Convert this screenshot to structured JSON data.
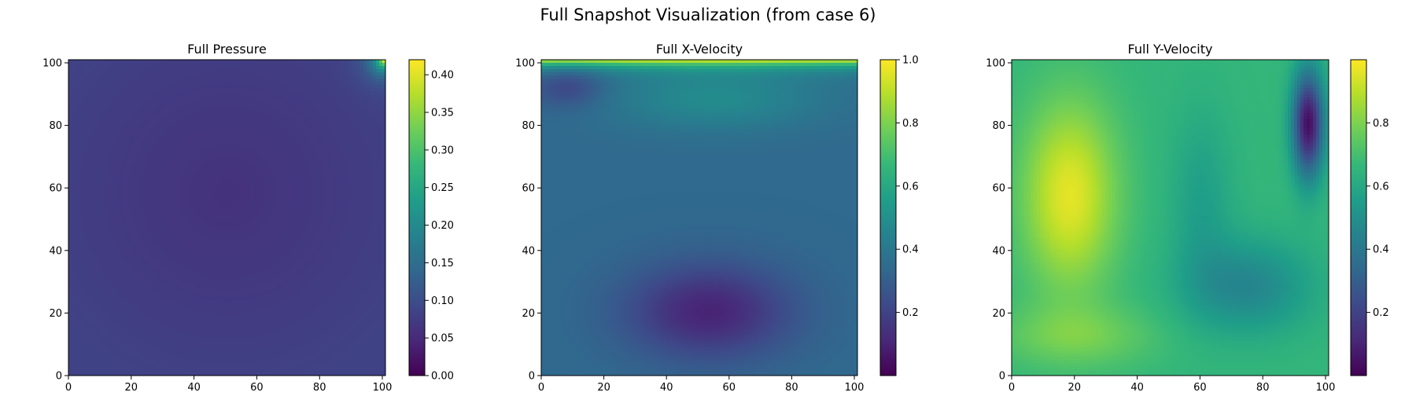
{
  "figure": {
    "title": "Full Snapshot Visualization (from case 6)"
  },
  "colors": {
    "viridis": [
      "#440154",
      "#482878",
      "#3e4989",
      "#31688e",
      "#26828e",
      "#1f9e89",
      "#35b779",
      "#6ece58",
      "#b5de2b",
      "#fde725"
    ]
  },
  "chart_data": [
    {
      "type": "heatmap",
      "title": "Full Pressure",
      "field": "pressure",
      "xlim": [
        0,
        101
      ],
      "ylim": [
        0,
        101
      ],
      "xticks": [
        0,
        20,
        40,
        60,
        80,
        100
      ],
      "yticks": [
        0,
        20,
        40,
        60,
        80,
        100
      ],
      "colorbar": {
        "vmin": 0.0,
        "vmax": 0.42,
        "ticks": [
          "0.00",
          "0.05",
          "0.10",
          "0.15",
          "0.20",
          "0.25",
          "0.30",
          "0.35",
          "0.40"
        ]
      }
    },
    {
      "type": "heatmap",
      "title": "Full X-Velocity",
      "field": "xvel",
      "xlim": [
        0,
        101
      ],
      "ylim": [
        0,
        101
      ],
      "xticks": [
        0,
        20,
        40,
        60,
        80,
        100
      ],
      "yticks": [
        0,
        20,
        40,
        60,
        80,
        100
      ],
      "colorbar": {
        "vmin": 0.0,
        "vmax": 1.0,
        "ticks": [
          "0.2",
          "0.4",
          "0.6",
          "0.8",
          "1.0"
        ]
      }
    },
    {
      "type": "heatmap",
      "title": "Full Y-Velocity",
      "field": "yvel",
      "xlim": [
        0,
        101
      ],
      "ylim": [
        0,
        101
      ],
      "xticks": [
        0,
        20,
        40,
        60,
        80,
        100
      ],
      "yticks": [
        0,
        20,
        40,
        60,
        80,
        100
      ],
      "colorbar": {
        "vmin": 0.0,
        "vmax": 1.0,
        "ticks": [
          "0.2",
          "0.4",
          "0.6",
          "0.8"
        ]
      }
    }
  ]
}
